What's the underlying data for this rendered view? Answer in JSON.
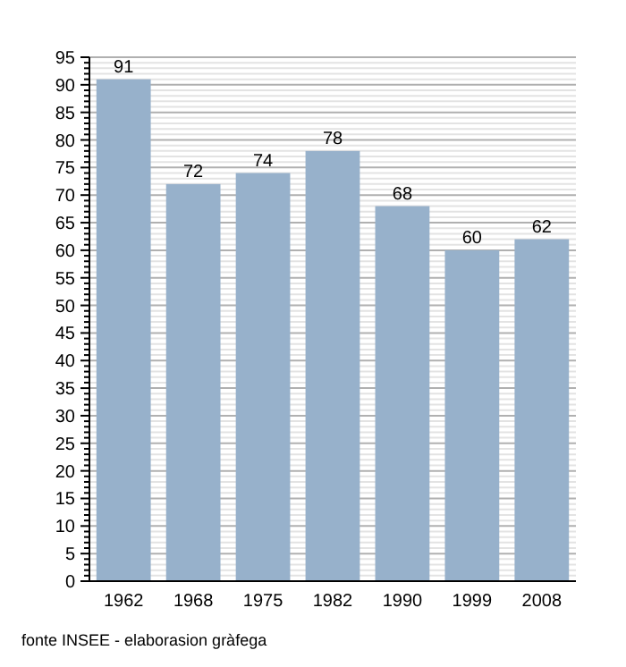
{
  "chart_data": {
    "type": "bar",
    "categories": [
      "1962",
      "1968",
      "1975",
      "1982",
      "1990",
      "1999",
      "2008"
    ],
    "values": [
      91,
      72,
      74,
      78,
      68,
      60,
      62
    ],
    "color": "#97b1cb",
    "data_labels": true,
    "ylim": [
      0,
      95
    ],
    "grid": true,
    "yticks": [
      0,
      {
        "value": 1,
        "label": null
      },
      {
        "value": 2,
        "label": null
      },
      {
        "value": 3,
        "label": null
      },
      {
        "value": 4,
        "label": null
      },
      5,
      {
        "value": 6,
        "label": null
      },
      {
        "value": 7,
        "label": null
      },
      {
        "value": 8,
        "label": null
      },
      {
        "value": 9,
        "label": null
      },
      10,
      {
        "value": 11,
        "label": null
      },
      {
        "value": 12,
        "label": null
      },
      {
        "value": 13,
        "label": null
      },
      {
        "value": 14,
        "label": null
      },
      15,
      {
        "value": 16,
        "label": null
      },
      {
        "value": 17,
        "label": null
      },
      {
        "value": 18,
        "label": null
      },
      {
        "value": 19,
        "label": null
      },
      20,
      {
        "value": 21,
        "label": null
      },
      {
        "value": 22,
        "label": null
      },
      {
        "value": 23,
        "label": null
      },
      {
        "value": 24,
        "label": null
      },
      25,
      {
        "value": 26,
        "label": null
      },
      {
        "value": 27,
        "label": null
      },
      {
        "value": 28,
        "label": null
      },
      {
        "value": 29,
        "label": null
      },
      30,
      {
        "value": 31,
        "label": null
      },
      {
        "value": 32,
        "label": null
      },
      {
        "value": 33,
        "label": null
      },
      {
        "value": 34,
        "label": null
      },
      35,
      {
        "value": 36,
        "label": null
      },
      {
        "value": 37,
        "label": null
      },
      {
        "value": 38,
        "label": null
      },
      {
        "value": 39,
        "label": null
      },
      40,
      {
        "value": 41,
        "label": null
      },
      {
        "value": 42,
        "label": null
      },
      {
        "value": 43,
        "label": null
      },
      {
        "value": 44,
        "label": null
      },
      45,
      {
        "value": 46,
        "label": null
      },
      {
        "value": 47,
        "label": null
      },
      {
        "value": 48,
        "label": null
      },
      {
        "value": 49,
        "label": null
      },
      50,
      {
        "value": 51,
        "label": null
      },
      {
        "value": 52,
        "label": null
      },
      {
        "value": 53,
        "label": null
      },
      {
        "value": 54,
        "label": null
      },
      55,
      {
        "value": 56,
        "label": null
      },
      {
        "value": 57,
        "label": null
      },
      {
        "value": 58,
        "label": null
      },
      {
        "value": 59,
        "label": null
      },
      60,
      {
        "value": 61,
        "label": null
      },
      {
        "value": 62,
        "label": null
      },
      {
        "value": 63,
        "label": null
      },
      {
        "value": 64,
        "label": null
      },
      65,
      {
        "value": 66,
        "label": null
      },
      {
        "value": 67,
        "label": null
      },
      {
        "value": 68,
        "label": null
      },
      {
        "value": 69,
        "label": null
      },
      70,
      {
        "value": 71,
        "label": null
      },
      {
        "value": 72,
        "label": null
      },
      {
        "value": 73,
        "label": null
      },
      {
        "value": 74,
        "label": null
      },
      75,
      {
        "value": 76,
        "label": null
      },
      {
        "value": 77,
        "label": null
      },
      {
        "value": 78,
        "label": null
      },
      {
        "value": 79,
        "label": null
      },
      80,
      {
        "value": 81,
        "label": null
      },
      {
        "value": 82,
        "label": null
      },
      {
        "value": 83,
        "label": null
      },
      {
        "value": 84,
        "label": null
      },
      85,
      {
        "value": 86,
        "label": null
      },
      {
        "value": 87,
        "label": null
      },
      {
        "value": 88,
        "label": null
      },
      {
        "value": 89,
        "label": null
      },
      90,
      {
        "value": 91,
        "label": null
      },
      {
        "value": 92,
        "label": null
      },
      {
        "value": 93,
        "label": null
      },
      {
        "value": 94,
        "label": null
      },
      95
    ],
    "annotations": [
      "fonte INSEE - elaborasion gràfega"
    ]
  }
}
